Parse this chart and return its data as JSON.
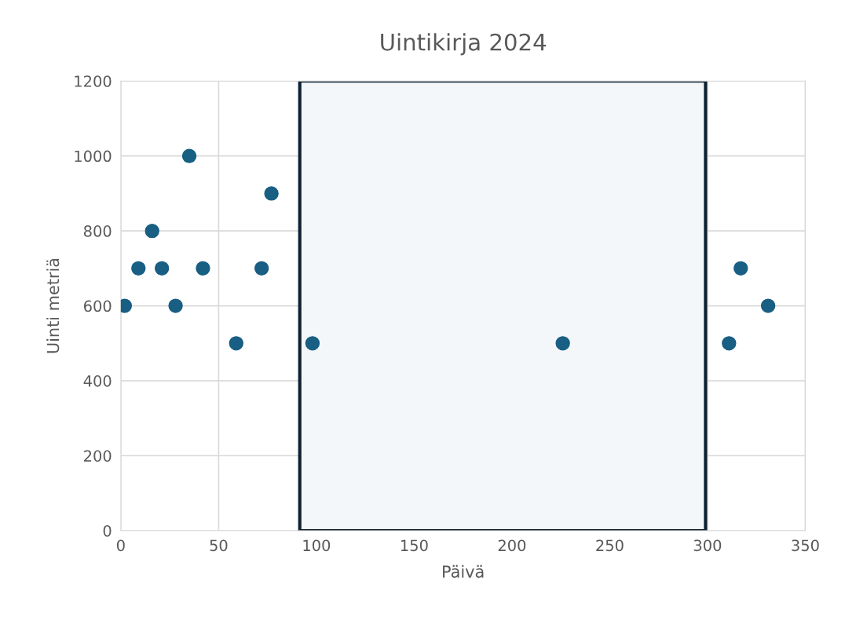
{
  "chart_data": {
    "type": "scatter",
    "title": "Uintikirja 2024",
    "xlabel": "Päivä",
    "ylabel": "Uinti metriä",
    "x": [
      2,
      9,
      16,
      21,
      28,
      35,
      42,
      59,
      72,
      77,
      98,
      226,
      311,
      317,
      331
    ],
    "series": [
      {
        "color": "#195e83",
        "values": [
          600,
          700,
          800,
          700,
          600,
          1000,
          700,
          500,
          700,
          900,
          500,
          500,
          500,
          700,
          600
        ]
      }
    ],
    "xlim": [
      0,
      350
    ],
    "xticks": [
      0,
      50,
      100,
      150,
      200,
      250,
      300,
      350
    ],
    "ylim": [
      0,
      1200
    ],
    "yticks": [
      0,
      200,
      400,
      600,
      800,
      1000,
      1200
    ],
    "bands": [
      {
        "axis": "x",
        "from": 91.5,
        "to": 299,
        "color": "#f3f7f9"
      }
    ],
    "grid": true,
    "marker": "circle"
  }
}
